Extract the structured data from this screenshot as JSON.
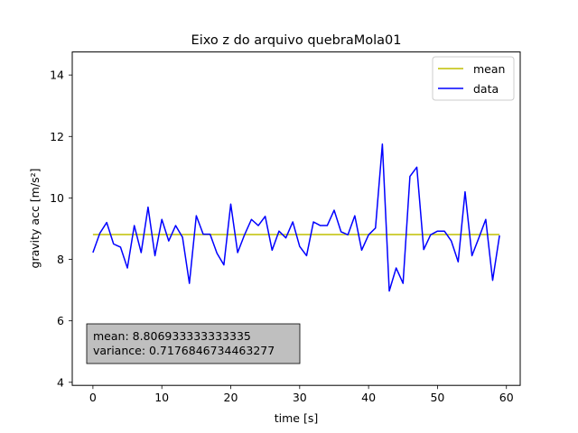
{
  "chart_data": {
    "type": "line",
    "title": "Eixo z do arquivo quebraMola01",
    "xlabel": "time [s]",
    "ylabel": "gravity acc [m/s²]",
    "xlim": [
      -3,
      62
    ],
    "ylim": [
      3.9,
      14.75
    ],
    "xticks": [
      0,
      10,
      20,
      30,
      40,
      50,
      60
    ],
    "yticks": [
      4,
      6,
      8,
      10,
      12,
      14
    ],
    "legend_position": "top-right",
    "grid": false,
    "series": [
      {
        "name": "mean",
        "color": "#bfbf00",
        "x": [
          0,
          59
        ],
        "y": [
          8.806933333333335,
          8.806933333333335
        ]
      },
      {
        "name": "data",
        "color": "#0000ff",
        "x": [
          0,
          1,
          2,
          3,
          4,
          5,
          6,
          7,
          8,
          9,
          10,
          11,
          12,
          13,
          14,
          15,
          16,
          17,
          18,
          19,
          20,
          21,
          22,
          23,
          24,
          25,
          26,
          27,
          28,
          29,
          30,
          31,
          32,
          33,
          34,
          35,
          36,
          37,
          38,
          39,
          40,
          41,
          42,
          43,
          44,
          45,
          46,
          47,
          48,
          49,
          50,
          51,
          52,
          53,
          54,
          55,
          56,
          57,
          58,
          59
        ],
        "y": [
          8.22,
          8.85,
          9.2,
          8.5,
          8.4,
          7.72,
          9.1,
          8.22,
          9.7,
          8.12,
          9.3,
          8.6,
          9.1,
          8.72,
          7.22,
          9.42,
          8.82,
          8.82,
          8.2,
          7.82,
          9.8,
          8.22,
          8.8,
          9.3,
          9.1,
          9.4,
          8.3,
          8.92,
          8.7,
          9.22,
          8.42,
          8.12,
          9.22,
          9.1,
          9.1,
          9.6,
          8.9,
          8.8,
          9.42,
          8.3,
          8.8,
          9.02,
          11.75,
          6.97,
          7.72,
          7.22,
          10.7,
          11.0,
          8.32,
          8.8,
          8.92,
          8.92,
          8.6,
          7.92,
          10.2,
          8.12,
          8.7,
          9.3,
          7.32,
          8.78
        ]
      }
    ],
    "annotation": {
      "lines": [
        "mean: 8.806933333333335",
        "variance: 0.7176846734463277"
      ],
      "background": "#bfbfbf"
    }
  }
}
